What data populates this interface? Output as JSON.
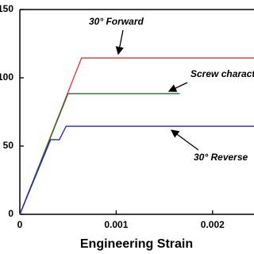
{
  "chart_data": {
    "type": "line",
    "x_label": "Engineering Strain",
    "xlim": [
      0,
      0.00243
    ],
    "xticks": [
      0,
      0.001,
      0.002
    ],
    "ylim": [
      0,
      150
    ],
    "yticks": [
      0,
      50,
      100,
      150
    ],
    "series": [
      {
        "name": "30° Forward",
        "color": "#e03030",
        "x": [
          0,
          0.00064,
          0.00243
        ],
        "values": [
          0,
          114.5,
          114.5
        ]
      },
      {
        "name": "Screw charact",
        "color": "#1a7a1a",
        "x": [
          0,
          0.0005,
          0.00166
        ],
        "values": [
          0,
          88.4,
          88.4
        ]
      },
      {
        "name": "30° Reverse",
        "color": "#2020d0",
        "x": [
          0,
          0.00032,
          0.00041,
          0.00048,
          0.00243
        ],
        "values": [
          0,
          54.7,
          54.7,
          64.5,
          64.5
        ]
      }
    ]
  }
}
